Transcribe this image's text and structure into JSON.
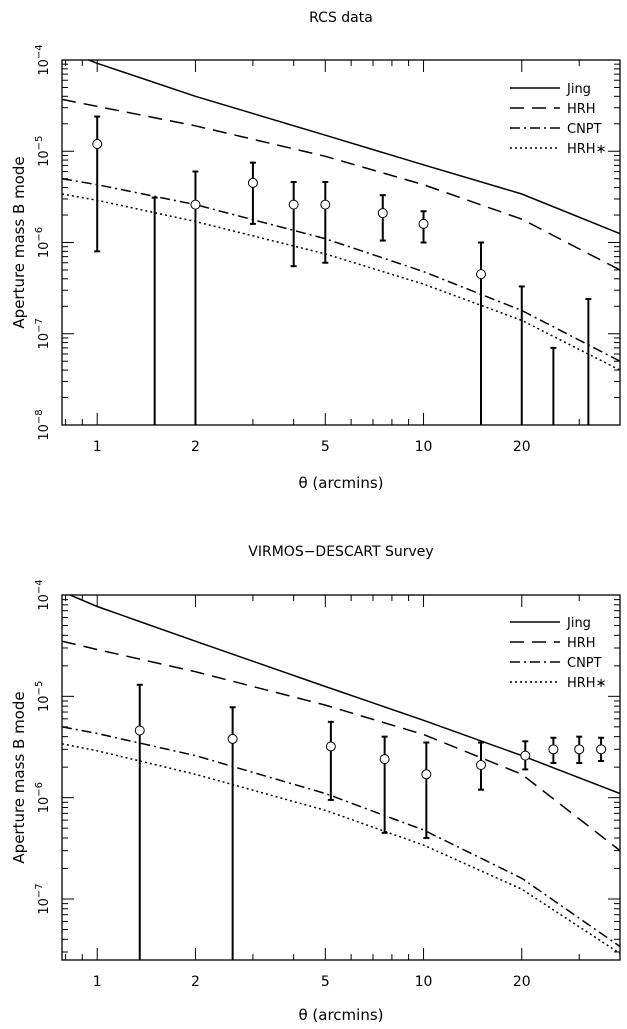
{
  "chart_data": [
    {
      "type": "line",
      "title": "RCS data",
      "xlabel": "θ (arcmins)",
      "ylabel": "Aperture mass B mode",
      "x_scale": "log",
      "y_scale": "log",
      "xlim": [
        0.78,
        40
      ],
      "ylim": [
        1e-08,
        0.0001
      ],
      "x_ticks": [
        1,
        2,
        5,
        10,
        20
      ],
      "y_ticks": [
        {
          "value": 1e-08,
          "label": "10",
          "exp": "−8"
        },
        {
          "value": 1e-07,
          "label": "10",
          "exp": "−7"
        },
        {
          "value": 1e-06,
          "label": "10",
          "exp": "−6"
        },
        {
          "value": 1e-05,
          "label": "10",
          "exp": "−5"
        },
        {
          "value": 0.0001,
          "label": "10",
          "exp": "−4"
        }
      ],
      "grid": false,
      "legend_position": "top-right",
      "series": [
        {
          "name": "Jing",
          "style": "solid",
          "x": [
            0.78,
            1,
            2,
            5,
            10,
            20,
            40
          ],
          "y": [
            0.00013,
            9.2e-05,
            4e-05,
            1.5e-05,
            7.1e-06,
            3.4e-06,
            1.25e-06
          ]
        },
        {
          "name": "HRH",
          "style": "dashed",
          "x": [
            0.78,
            1,
            2,
            5,
            10,
            20,
            40
          ],
          "y": [
            3.7e-05,
            3.1e-05,
            1.9e-05,
            8.8e-06,
            4.3e-06,
            1.8e-06,
            5e-07
          ]
        },
        {
          "name": "CNPT",
          "style": "dashdot",
          "x": [
            0.78,
            1,
            2,
            5,
            10,
            20,
            40
          ],
          "y": [
            5e-06,
            4.3e-06,
            2.6e-06,
            1.1e-06,
            4.8e-07,
            1.8e-07,
            5e-08
          ]
        },
        {
          "name": "HRH∗",
          "style": "dotted",
          "x": [
            0.78,
            1,
            2,
            5,
            10,
            20,
            40
          ],
          "y": [
            3.4e-06,
            2.9e-06,
            1.7e-06,
            7.5e-07,
            3.5e-07,
            1.4e-07,
            4e-08
          ]
        }
      ],
      "points": {
        "x": [
          1,
          1.5,
          2,
          3,
          4,
          5,
          7.5,
          10,
          15,
          20,
          25,
          32
        ],
        "y": [
          1.2e-05,
          null,
          2.6e-06,
          4.5e-06,
          2.6e-06,
          2.6e-06,
          2.1e-06,
          1.6e-06,
          4.5e-07,
          null,
          null,
          null
        ],
        "err_low": [
          8e-07,
          1e-08,
          1e-08,
          1.6e-06,
          5.5e-07,
          6e-07,
          1.05e-06,
          1e-06,
          1e-08,
          1e-08,
          1e-08,
          1e-08
        ],
        "err_high": [
          2.4e-05,
          3.1e-06,
          6e-06,
          7.5e-06,
          4.6e-06,
          4.6e-06,
          3.3e-06,
          2.2e-06,
          1e-06,
          3.3e-07,
          7e-08,
          2.4e-07
        ]
      }
    },
    {
      "type": "line",
      "title": "VIRMOS−DESCART Survey",
      "xlabel": "θ (arcmins)",
      "ylabel": "Aperture mass B mode",
      "x_scale": "log",
      "y_scale": "log",
      "xlim": [
        0.78,
        40
      ],
      "ylim": [
        2.5e-08,
        0.0001
      ],
      "x_ticks": [
        1,
        2,
        5,
        10,
        20
      ],
      "y_ticks": [
        {
          "value": 1e-07,
          "label": "10",
          "exp": "−7"
        },
        {
          "value": 1e-06,
          "label": "10",
          "exp": "−6"
        },
        {
          "value": 1e-05,
          "label": "10",
          "exp": "−5"
        },
        {
          "value": 0.0001,
          "label": "10",
          "exp": "−4"
        }
      ],
      "grid": false,
      "legend_position": "top-right",
      "series": [
        {
          "name": "Jing",
          "style": "solid",
          "x": [
            0.78,
            1,
            2,
            5,
            10,
            20,
            40
          ],
          "y": [
            0.000108,
            7.7e-05,
            3.5e-05,
            1.25e-05,
            5.8e-06,
            2.6e-06,
            1.1e-06
          ]
        },
        {
          "name": "HRH",
          "style": "dashed",
          "x": [
            0.78,
            1,
            2,
            5,
            10,
            20,
            40
          ],
          "y": [
            3.5e-05,
            2.9e-05,
            1.75e-05,
            8.2e-06,
            4.2e-06,
            1.7e-06,
            3e-07
          ]
        },
        {
          "name": "CNPT",
          "style": "dashdot",
          "x": [
            0.78,
            1,
            2,
            5,
            10,
            20,
            40
          ],
          "y": [
            5e-06,
            4.3e-06,
            2.6e-06,
            1.1e-06,
            4.8e-07,
            1.6e-07,
            3.4e-08
          ]
        },
        {
          "name": "HRH∗",
          "style": "dotted",
          "x": [
            0.78,
            1,
            2,
            5,
            10,
            20,
            40
          ],
          "y": [
            3.4e-06,
            2.9e-06,
            1.7e-06,
            7.5e-07,
            3.4e-07,
            1.25e-07,
            2.9e-08
          ]
        }
      ],
      "points": {
        "x": [
          1.35,
          2.6,
          5.2,
          7.6,
          10.2,
          15,
          20.5,
          25,
          30,
          35
        ],
        "y": [
          4.6e-06,
          3.8e-06,
          3.2e-06,
          2.4e-06,
          1.7e-06,
          2.1e-06,
          2.6e-06,
          3e-06,
          3e-06,
          3e-06
        ],
        "err_low": [
          2.5e-08,
          2.5e-08,
          9.5e-07,
          4.5e-07,
          4e-07,
          1.2e-06,
          1.9e-06,
          2.2e-06,
          2.2e-06,
          2.3e-06
        ],
        "err_high": [
          1.3e-05,
          7.8e-06,
          5.6e-06,
          4e-06,
          3.5e-06,
          3.5e-06,
          3.6e-06,
          3.9e-06,
          4e-06,
          3.9e-06
        ]
      }
    }
  ]
}
